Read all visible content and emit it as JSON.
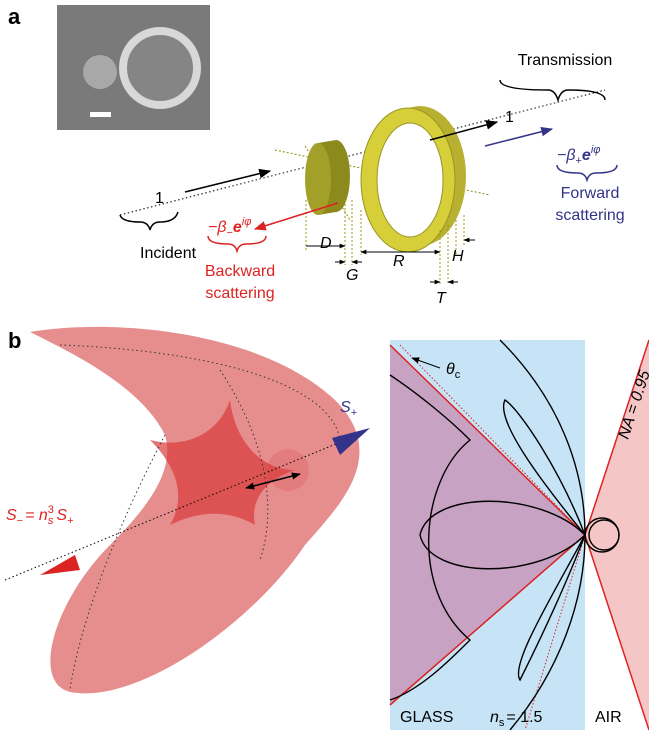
{
  "panel_a": {
    "label": "a",
    "transmission": "Transmission",
    "incident": "Incident",
    "incident_amplitude": "1",
    "transmitted_amplitude": "1",
    "forward": {
      "base": "−β",
      "sub": "+",
      "e": "e",
      "sup": "iφ",
      "line1": "Forward",
      "line2": "scattering"
    },
    "backward": {
      "base": "−β",
      "sub": "−",
      "e": "e",
      "sup": "iφ",
      "line1": "Backward",
      "line2": "scattering"
    },
    "dimensions": {
      "D": "D",
      "G": "G",
      "R": "R",
      "H": "H",
      "T": "T"
    }
  },
  "panel_b": {
    "label": "b",
    "s_plus": {
      "base": "S",
      "sub": "+"
    },
    "s_minus": {
      "base": "S",
      "sub": "−",
      "eq": "= n",
      "n_sup": "3",
      "n_sub": "s",
      "base2": "S",
      "sub2": "+"
    },
    "theta": {
      "base": "θ",
      "sub": "c"
    },
    "na": "NA = 0.95",
    "glass": "GLASS",
    "ns": {
      "base": "n",
      "sub": "s",
      "rest": "= 1.5"
    },
    "air": "AIR"
  }
}
